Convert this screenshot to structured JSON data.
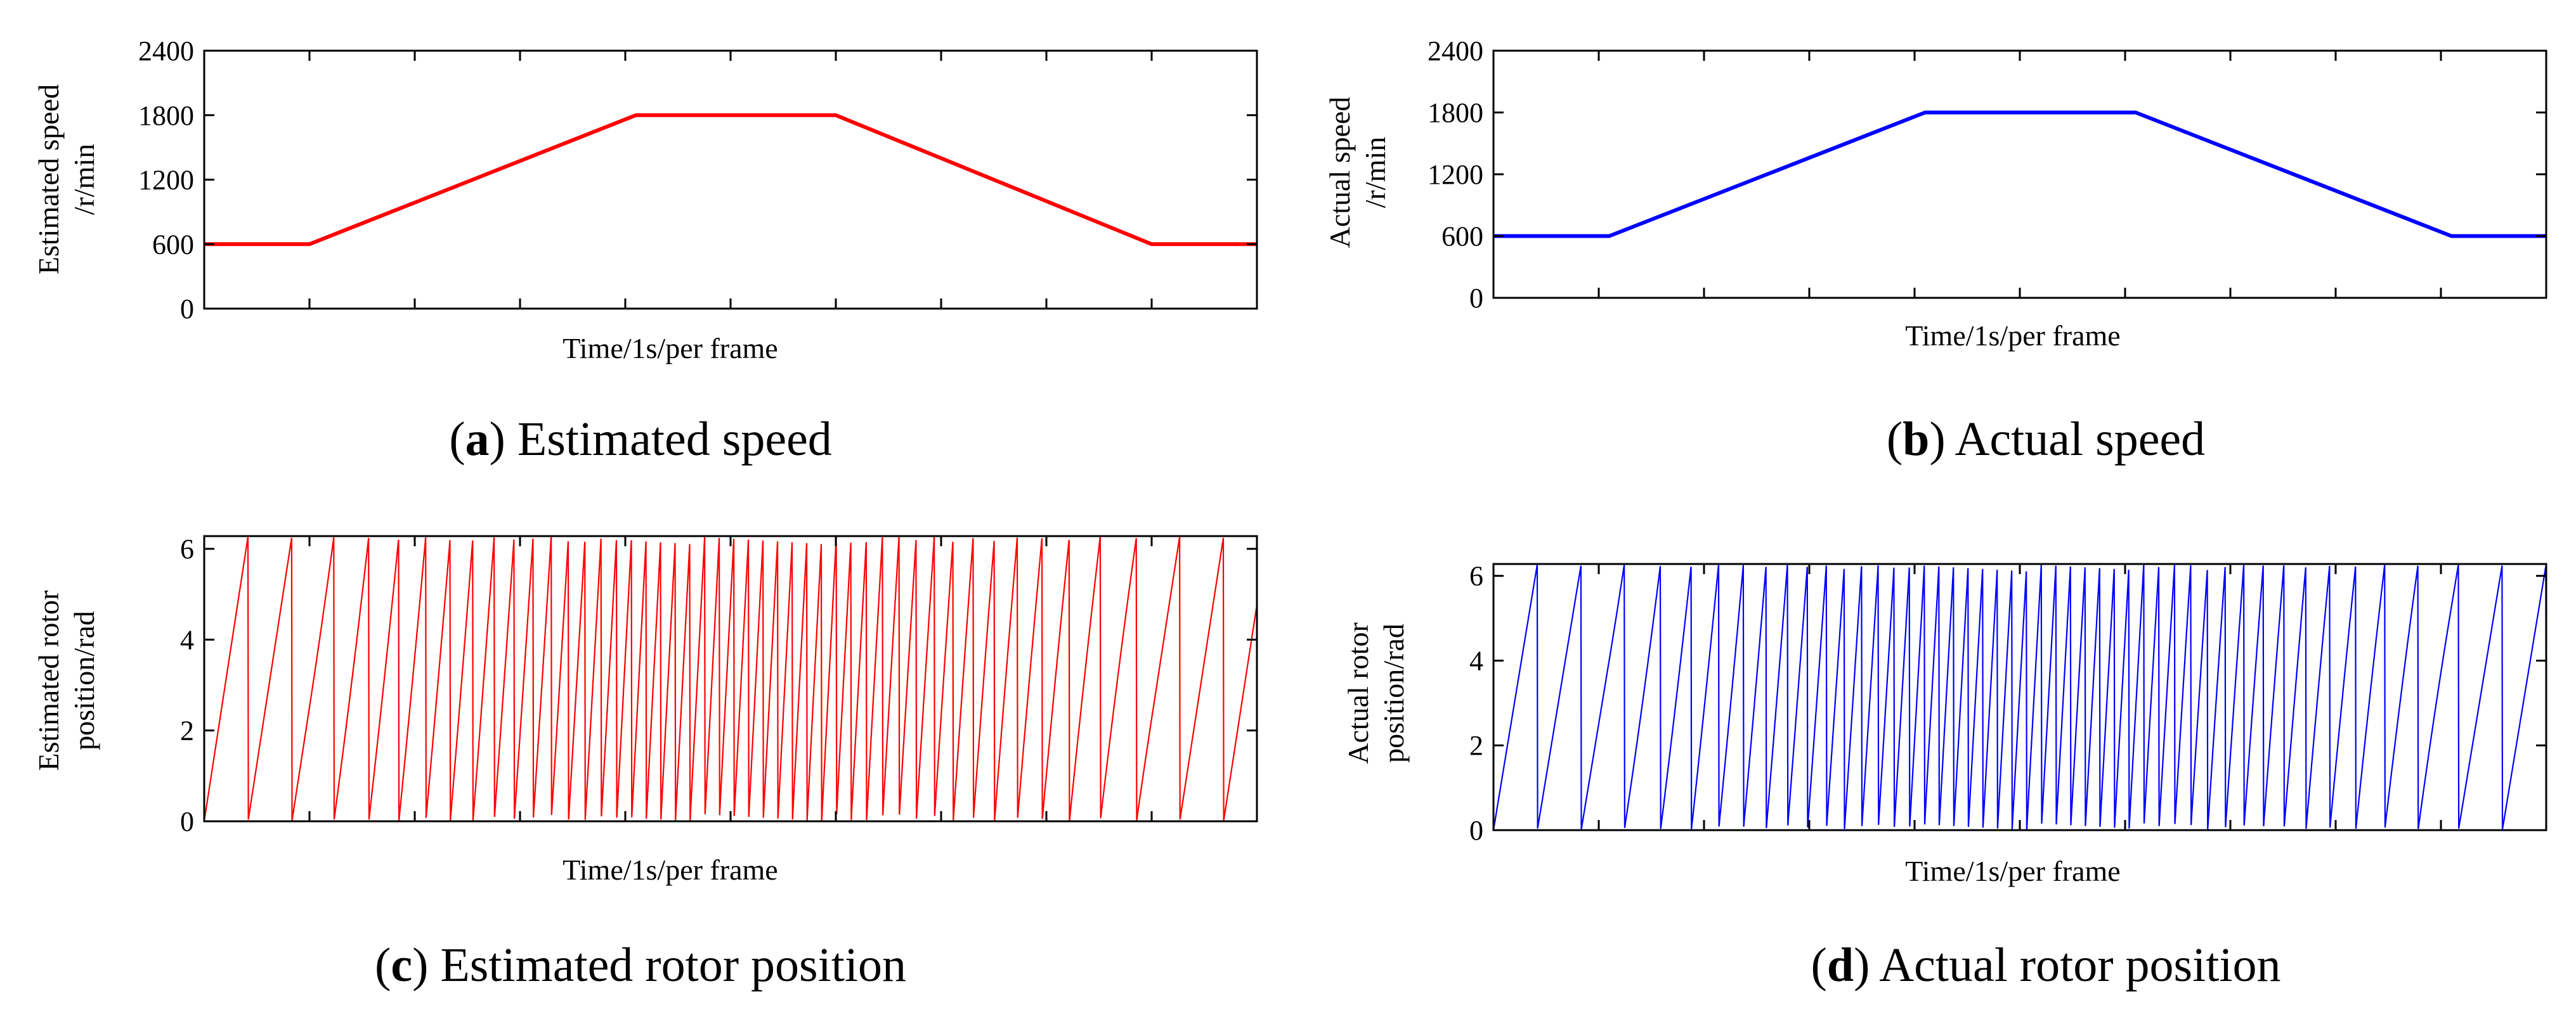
{
  "figure": {
    "panels": [
      {
        "id": "a",
        "caption_letter": "a",
        "caption_text": " Estimated speed",
        "ylabel_lines": [
          "Estimated speed",
          "/r/min"
        ],
        "xlabel": "Time/1s/per frame",
        "color": "#ff0000"
      },
      {
        "id": "b",
        "caption_letter": "b",
        "caption_text": " Actual speed",
        "ylabel_lines": [
          "Actual speed",
          "/r/min"
        ],
        "xlabel": "Time/1s/per frame",
        "color": "#0000ff"
      },
      {
        "id": "c",
        "caption_letter": "c",
        "caption_text": " Estimated rotor position",
        "ylabel_lines": [
          "Estimated rotor",
          "position/rad"
        ],
        "xlabel": "Time/1s/per frame",
        "color": "#ff0000"
      },
      {
        "id": "d",
        "caption_letter": "d",
        "caption_text": " Actual rotor position",
        "ylabel_lines": [
          "Actual rotor",
          "position/rad"
        ],
        "xlabel": "Time/1s/per frame",
        "color": "#0000ff"
      }
    ]
  },
  "chart_data": [
    {
      "id": "a",
      "type": "line",
      "title": "Estimated speed",
      "xlabel": "Time/1s/per frame",
      "ylabel": "Estimated speed /r/min",
      "x_ticks": 10,
      "xlim": [
        0,
        10
      ],
      "ylim": [
        0,
        2400
      ],
      "yticks": [
        0,
        600,
        1200,
        1800,
        2400
      ],
      "series": [
        {
          "name": "Estimated speed",
          "color": "#ff0000",
          "x": [
            0,
            1,
            4.1,
            6,
            9,
            10
          ],
          "y": [
            600,
            600,
            1800,
            1800,
            600,
            600
          ]
        }
      ]
    },
    {
      "id": "b",
      "type": "line",
      "title": "Actual speed",
      "xlabel": "Time/1s/per frame",
      "ylabel": "Actual speed /r/min",
      "x_ticks": 10,
      "xlim": [
        0,
        10
      ],
      "ylim": [
        0,
        2400
      ],
      "yticks": [
        0,
        600,
        1200,
        1800,
        2400
      ],
      "series": [
        {
          "name": "Actual speed",
          "color": "#0000ff",
          "x": [
            0,
            1.1,
            4.1,
            6.1,
            9.1,
            10
          ],
          "y": [
            600,
            600,
            1800,
            1800,
            600,
            600
          ]
        }
      ]
    },
    {
      "id": "c",
      "type": "line",
      "title": "Estimated rotor position",
      "xlabel": "Time/1s/per frame",
      "ylabel": "Estimated rotor position/rad",
      "x_ticks": 10,
      "xlim": [
        0,
        10
      ],
      "ylim": [
        0,
        6.28
      ],
      "yticks": [
        0,
        2,
        4,
        6
      ],
      "wave": "sawtooth",
      "amplitude": 6.28,
      "color": "#ff0000",
      "speed_profile": {
        "x": [
          0,
          1,
          4.1,
          6,
          9,
          10
        ],
        "y": [
          600,
          600,
          1800,
          1800,
          600,
          600
        ]
      }
    },
    {
      "id": "d",
      "type": "line",
      "title": "Actual rotor position",
      "xlabel": "Time/1s/per frame",
      "ylabel": "Actual rotor position/rad",
      "x_ticks": 10,
      "xlim": [
        0,
        10
      ],
      "ylim": [
        0,
        6.28
      ],
      "yticks": [
        0,
        2,
        4,
        6
      ],
      "wave": "sawtooth",
      "amplitude": 6.28,
      "color": "#0000ff",
      "speed_profile": {
        "x": [
          0,
          1.1,
          4.1,
          6.1,
          9.1,
          10
        ],
        "y": [
          600,
          600,
          1800,
          1800,
          600,
          600
        ]
      }
    }
  ]
}
